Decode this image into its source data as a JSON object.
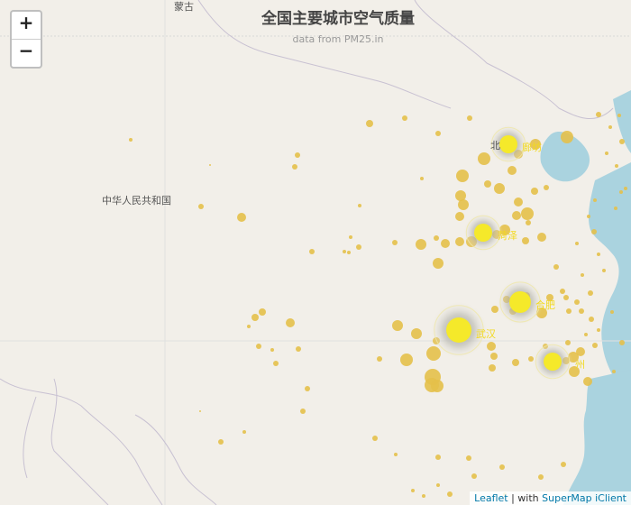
{
  "title": "全国主要城市空气质量",
  "subtitle": "data from PM25.in",
  "zoom": {
    "in_label": "+",
    "out_label": "−"
  },
  "attribution": {
    "leaflet": "Leaflet",
    "sep": " | with ",
    "client": "SuperMap iClient"
  },
  "map_labels": {
    "mongolia": "蒙古",
    "china": "中华人民共和国"
  },
  "highlight_cities": [
    {
      "name": "北京",
      "label_part": "北",
      "label_tail": "廊坊"
    },
    {
      "name": "菏泽",
      "label": "菏泽"
    },
    {
      "name": "合肥",
      "label": "合肥"
    },
    {
      "name": "武汉",
      "label": "武汉"
    },
    {
      "name": "杭州",
      "label": "州"
    }
  ],
  "colors": {
    "land": "#f2efe9",
    "water": "#aad3df",
    "border": "#c7c0cf",
    "dot": "#e4c04a",
    "highlight": "#f5e92a",
    "label": "#f2d91f"
  }
}
